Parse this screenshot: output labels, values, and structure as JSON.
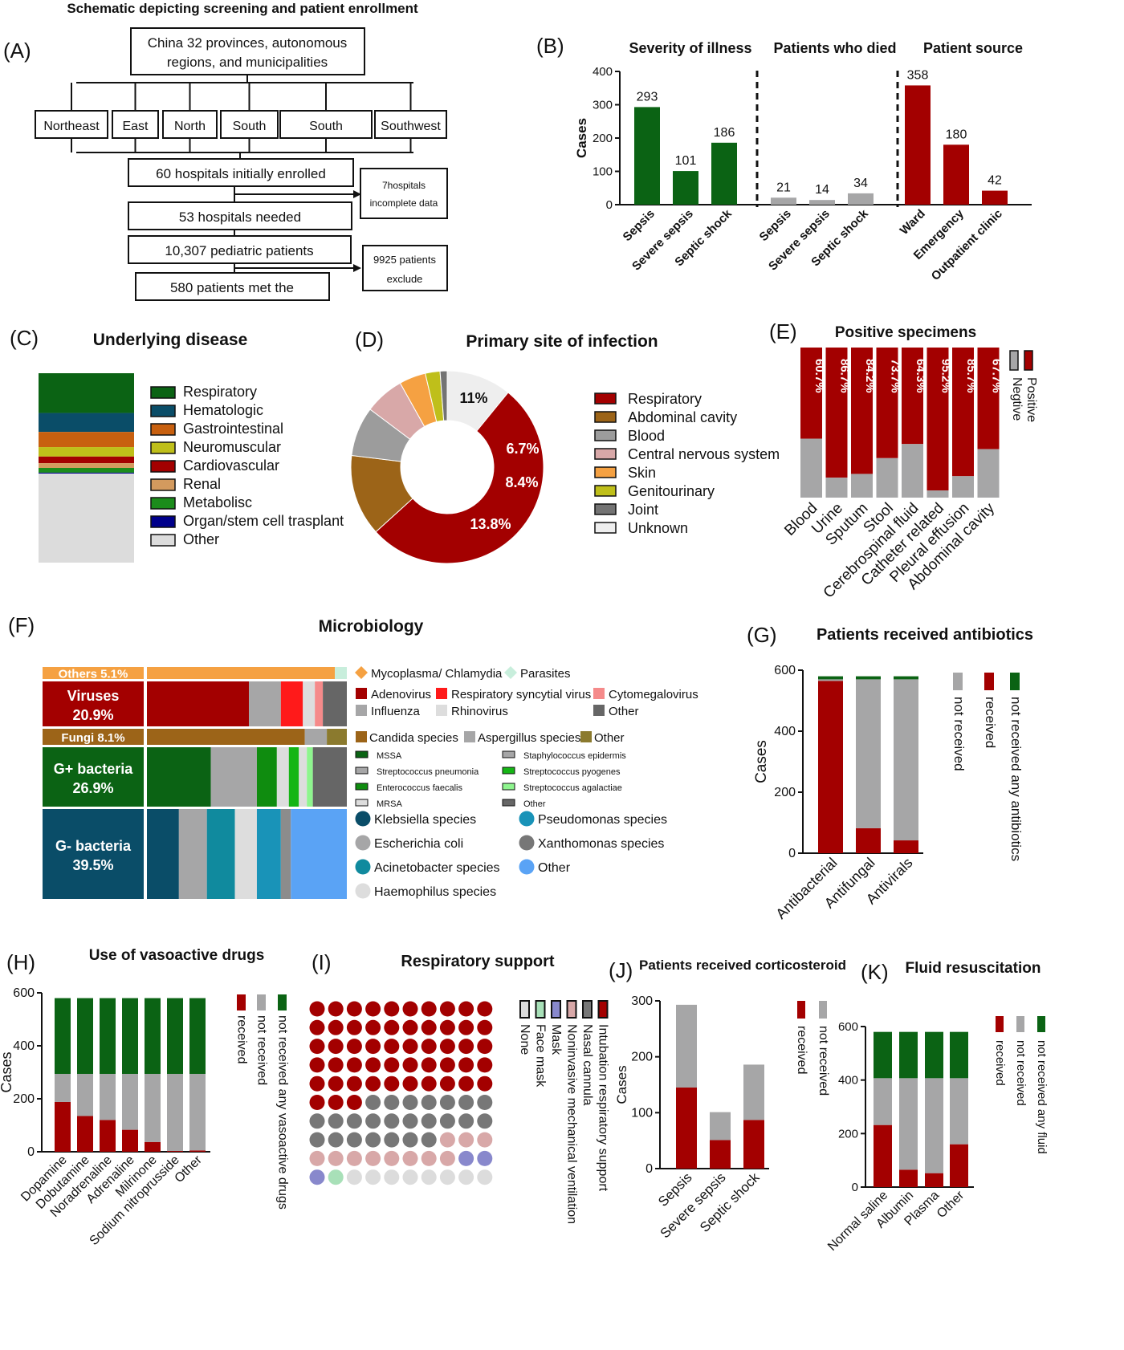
{
  "colors": {
    "green": "#0B6314",
    "red": "#A30000",
    "gray": "#A6A6A7",
    "lightgray": "#E0E0E0",
    "dark": "#666666",
    "teal": "#0A4D68",
    "orange": "#F5A142",
    "brown": "#9C6418",
    "pink": "#D8A8A8",
    "olive": "#BFBF1A",
    "blue": "#5AA3F5",
    "cyan": "#1993B8"
  },
  "panels": {
    "A": {
      "letter": "(A)",
      "title": "Schematic depicting screening and patient enrollment",
      "top": "China 32 provinces, autonomous regions, and municipalities",
      "regions": [
        "Northeast",
        "East",
        "North",
        "South",
        "South",
        "Southwest"
      ],
      "step1": "60 hospitals initially enrolled",
      "excl1": "7hospitals incomplete data",
      "step2": "53 hospitals needed",
      "step3": "10,307 pediatric patients",
      "excl2": "9925 patients exclude",
      "step4": "580 patients met the"
    },
    "B": {
      "letter": "(B)"
    },
    "C": {
      "letter": "(C)"
    },
    "D": {
      "letter": "(D)"
    },
    "E": {
      "letter": "(E)"
    },
    "F": {
      "letter": "(F)"
    },
    "G": {
      "letter": "(G)"
    },
    "H": {
      "letter": "(H)"
    },
    "I": {
      "letter": "(I)"
    },
    "J": {
      "letter": "(J)"
    },
    "K": {
      "letter": "(K)"
    }
  },
  "chart_data": [
    {
      "panel": "B",
      "type": "bar",
      "ylabel": "Cases",
      "ylim": [
        0,
        400
      ],
      "yticks": [
        0,
        100,
        200,
        300,
        400
      ],
      "groups": [
        {
          "title": "Severity of illness",
          "categories": [
            "Sepsis",
            "Severe sepsis",
            "Septic shock"
          ],
          "values": [
            293,
            101,
            186
          ],
          "color": "green"
        },
        {
          "title": "Patients who died",
          "categories": [
            "Sepsis",
            "Severe sepsis",
            "Septic shock"
          ],
          "values": [
            21,
            14,
            34
          ],
          "color": "gray"
        },
        {
          "title": "Patient source",
          "categories": [
            "Ward",
            "Emergency",
            "Outpatient clinic"
          ],
          "values": [
            358,
            180,
            42
          ],
          "color": "red"
        }
      ]
    },
    {
      "panel": "C",
      "type": "bar",
      "title": "Underlying disease",
      "stacked": true,
      "segments": [
        {
          "name": "Respiratory",
          "value": 21,
          "color": "#0B6314"
        },
        {
          "name": "Hematologic",
          "value": 10,
          "color": "#0A4D68"
        },
        {
          "name": "Gastrointestinal",
          "value": 8,
          "color": "#C8600F"
        },
        {
          "name": "Neuromuscular",
          "value": 5,
          "color": "#BFBF1A"
        },
        {
          "name": "Cardiovascular",
          "value": 3.5,
          "color": "#A30000"
        },
        {
          "name": "Renal",
          "value": 2.5,
          "color": "#D39A5E"
        },
        {
          "name": "Metabolisc",
          "value": 2.5,
          "color": "#1B8C1B"
        },
        {
          "name": "Organ/stem cell  trasplant",
          "value": 0.5,
          "color": "#00008B"
        },
        {
          "name": "Other",
          "value": 47,
          "color": "#DCDCDC"
        }
      ]
    },
    {
      "panel": "D",
      "type": "pie",
      "title": "Primary site of infection",
      "slices": [
        {
          "name": "Respiratory",
          "value": 52.9,
          "label": "52.9%",
          "color": "#A30000"
        },
        {
          "name": "Abdominal cavity",
          "value": 13.8,
          "label": "13.8%",
          "color": "#9C6418"
        },
        {
          "name": "Blood",
          "value": 8.4,
          "label": "8.4%",
          "color": "#9C9C9C"
        },
        {
          "name": "Central nervous system",
          "value": 6.7,
          "label": "6.7%",
          "color": "#D8A8A8"
        },
        {
          "name": "Skin",
          "value": 4.5,
          "label": "",
          "color": "#F5A142"
        },
        {
          "name": "Genitourinary",
          "value": 2.5,
          "label": "",
          "color": "#BFBF1A"
        },
        {
          "name": "Joint",
          "value": 1.2,
          "label": "",
          "color": "#737373"
        },
        {
          "name": "Unknown",
          "value": 11,
          "label": "11%",
          "color": "#EEEEEE"
        }
      ]
    },
    {
      "panel": "E",
      "type": "bar",
      "title": "Positive specimens",
      "stacked": true,
      "normalized": true,
      "categories": [
        "Blood",
        "Urine",
        "Sputum",
        "Stool",
        "Cerebrospinal fluid",
        "Catheter related",
        "Pleural effusion",
        "Abdominal cavity"
      ],
      "series": [
        {
          "name": "Positive",
          "values": [
            60.7,
            86.7,
            84.2,
            73.7,
            64.3,
            95.2,
            85.7,
            67.7
          ],
          "labels": [
            "60.7%",
            "86.7%",
            "84.2%",
            "73.7%",
            "64.3%",
            "95.2%",
            "85.7%",
            "67.7%"
          ],
          "color": "red"
        },
        {
          "name": "Negtive",
          "values": [
            39.3,
            13.3,
            15.8,
            26.3,
            35.7,
            4.8,
            14.3,
            32.3
          ],
          "color": "gray"
        }
      ]
    },
    {
      "panel": "F",
      "type": "bar",
      "title": "Microbiology",
      "stacked": true,
      "rows": [
        {
          "label": "Others 5.1%",
          "value": 5.1,
          "color": "#F5A142",
          "parts": [
            {
              "name": "Mycoplasma/ Chlamydia",
              "value": 94,
              "color": "#F5A142"
            },
            {
              "name": "Parasites",
              "value": 6,
              "color": "#C8EEDC"
            }
          ]
        },
        {
          "label": "Viruses",
          "pct": "20.9%",
          "value": 20.9,
          "color": "#A30000",
          "parts": [
            {
              "name": "Adenovirus",
              "value": 51,
              "color": "#A30000"
            },
            {
              "name": "Influenza",
              "value": 16,
              "color": "#A6A6A7"
            },
            {
              "name": "Respiratory syncytial virus",
              "value": 11,
              "color": "#FF1A1A"
            },
            {
              "name": "Rhinovirus",
              "value": 6,
              "color": "#DDDDDD"
            },
            {
              "name": "Cytomegalovirus",
              "value": 4,
              "color": "#F58A8A"
            },
            {
              "name": "Other",
              "value": 12,
              "color": "#666666"
            }
          ]
        },
        {
          "label": "Fungi 8.1%",
          "value": 8.1,
          "color": "#9C6418",
          "parts": [
            {
              "name": "Candida species",
              "value": 79,
              "color": "#9C6418"
            },
            {
              "name": "Aspergillus species",
              "value": 11,
              "color": "#A6A6A7"
            },
            {
              "name": "Other",
              "value": 10,
              "color": "#8B7A2E"
            }
          ]
        },
        {
          "label": "G+ bacteria",
          "pct": "26.9%",
          "value": 26.9,
          "color": "#0B6314",
          "parts": [
            {
              "name": "MSSA",
              "value": 32,
              "color": "#0B6314"
            },
            {
              "name": "Staphylococcus epidermis",
              "value": 23,
              "color": "#A6A6A7"
            },
            {
              "name": "Streptococcus pneumonia",
              "value": 10,
              "color": "#0F8C0F"
            },
            {
              "name": "Enterococcus faecalis",
              "value": 6,
              "color": "#DDDDDD"
            },
            {
              "name": "Streptococcus pyogenes",
              "value": 5,
              "color": "#15B515"
            },
            {
              "name": "MRSA",
              "value": 4,
              "color": "#DDDDDD"
            },
            {
              "name": "Streptococcus agalactiae",
              "value": 3,
              "color": "#8EF58E"
            },
            {
              "name": "Other",
              "value": 17,
              "color": "#666666"
            }
          ]
        },
        {
          "label": "G- bacteria",
          "pct": "39.5%",
          "value": 39.5,
          "color": "#0A4D68",
          "parts": [
            {
              "name": "Klebsiella species",
              "value": 16,
              "color": "#0A4D68"
            },
            {
              "name": "Escherichia coli",
              "value": 14,
              "color": "#A6A6A7"
            },
            {
              "name": "Acinetobacter species",
              "value": 14,
              "color": "#108A9E"
            },
            {
              "name": "Haemophilus species",
              "value": 11,
              "color": "#DDDDDD"
            },
            {
              "name": "Pseudomonas species",
              "value": 12,
              "color": "#1993B8"
            },
            {
              "name": "Xanthomonas species",
              "value": 5,
              "color": "#8C8C8C"
            },
            {
              "name": "Other",
              "value": 28,
              "color": "#5AA3F5"
            }
          ]
        }
      ],
      "legends": [
        {
          "items": [
            {
              "name": "Mycoplasma/ Chlamydia",
              "color": "#F5A142",
              "shape": "diamond"
            },
            {
              "name": "Parasites",
              "color": "#C8EEDC",
              "shape": "diamond"
            }
          ]
        },
        {
          "items": [
            {
              "name": "Adenovirus",
              "color": "#A30000"
            },
            {
              "name": "Respiratory syncytial virus",
              "color": "#FF1A1A"
            },
            {
              "name": "Cytomegalovirus",
              "color": "#F58A8A"
            },
            {
              "name": "Influenza",
              "color": "#A6A6A7"
            },
            {
              "name": "Rhinovirus",
              "color": "#DDDDDD"
            },
            {
              "name": "Other",
              "color": "#666666"
            }
          ]
        },
        {
          "items": [
            {
              "name": "Candida species",
              "color": "#9C6418"
            },
            {
              "name": "Aspergillus species",
              "color": "#A6A6A7"
            },
            {
              "name": "Other",
              "color": "#8B7A2E"
            }
          ]
        },
        {
          "items": [
            {
              "name": "MSSA",
              "color": "#0B6314"
            },
            {
              "name": "Staphylococcus epidermis",
              "color": "#A6A6A7"
            },
            {
              "name": "Streptococcus pneumonia",
              "color": "#A6A6A7"
            },
            {
              "name": "Streptococcus pyogenes",
              "color": "#15B515"
            },
            {
              "name": "Enterococcus faecalis",
              "color": "#0F8C0F"
            },
            {
              "name": "Streptococcus agalactiae",
              "color": "#8EF58E"
            },
            {
              "name": "MRSA",
              "color": "#DDDDDD"
            },
            {
              "name": "Other",
              "color": "#666666"
            }
          ]
        },
        {
          "items": [
            {
              "name": "Klebsiella species",
              "color": "#0A4D68"
            },
            {
              "name": "Pseudomonas species",
              "color": "#1993B8"
            },
            {
              "name": "Escherichia coli",
              "color": "#A6A6A7"
            },
            {
              "name": "Xanthomonas species",
              "color": "#777777"
            },
            {
              "name": "Acinetobacter species",
              "color": "#108A9E"
            },
            {
              "name": "Other",
              "color": "#5AA3F5"
            },
            {
              "name": "Haemophilus species",
              "color": "#DDDDDD"
            }
          ]
        }
      ]
    },
    {
      "panel": "G",
      "type": "bar",
      "title": "Patients received antibiotics",
      "stacked": true,
      "ylabel": "Cases",
      "ylim": [
        0,
        600
      ],
      "yticks": [
        0,
        200,
        400,
        600
      ],
      "categories": [
        "Antibacterial",
        "Antifungal",
        "Antivirals"
      ],
      "series": [
        {
          "name": "received",
          "values": [
            565,
            82,
            42
          ],
          "color": "red"
        },
        {
          "name": "not received",
          "values": [
            5,
            488,
            528
          ],
          "color": "gray"
        },
        {
          "name": "not received any antibiotics",
          "values": [
            10,
            10,
            10
          ],
          "color": "green"
        }
      ]
    },
    {
      "panel": "H",
      "type": "bar",
      "title": "Use of vasoactive drugs",
      "stacked": true,
      "ylabel": "Cases",
      "ylim": [
        0,
        600
      ],
      "yticks": [
        0,
        200,
        400,
        600
      ],
      "categories": [
        "Dopamine",
        "Dobutamine",
        "Noradrenaline",
        "Adrenaline",
        "Milrinone",
        "Sodium nitroprusside",
        "Other"
      ],
      "series": [
        {
          "name": "received",
          "values": [
            188,
            135,
            120,
            83,
            37,
            3,
            5
          ],
          "color": "red"
        },
        {
          "name": "not received",
          "values": [
            106,
            159,
            174,
            211,
            257,
            291,
            289
          ],
          "color": "gray"
        },
        {
          "name": "not received any vasoactive drugs",
          "values": [
            286,
            286,
            286,
            286,
            286,
            286,
            286
          ],
          "color": "green"
        }
      ]
    },
    {
      "panel": "I",
      "type": "table",
      "title": "Respiratory support",
      "grid": [
        10,
        10
      ],
      "categories": [
        {
          "name": "Intubation respiratory support",
          "count": 53,
          "color": "#A30000"
        },
        {
          "name": "Nasal cannula",
          "count": 24,
          "color": "#777777"
        },
        {
          "name": "Noninvasive mechanical ventilation",
          "count": 11,
          "color": "#D8A8A8"
        },
        {
          "name": "Mask",
          "count": 3,
          "color": "#8888CC"
        },
        {
          "name": "Face mask",
          "count": 1,
          "color": "#A8E0B8"
        },
        {
          "name": "None",
          "count": 8,
          "color": "#DCDCDC"
        }
      ]
    },
    {
      "panel": "J",
      "type": "bar",
      "title": "Patients received corticosteroid",
      "stacked": true,
      "ylabel": "Cases",
      "ylim": [
        0,
        300
      ],
      "yticks": [
        0,
        100,
        200,
        300
      ],
      "categories": [
        "Sepsis",
        "Severe sepsis",
        "Septic shock"
      ],
      "series": [
        {
          "name": "received",
          "values": [
            145,
            51,
            87
          ],
          "color": "red"
        },
        {
          "name": "not received",
          "values": [
            148,
            50,
            99
          ],
          "color": "gray"
        }
      ]
    },
    {
      "panel": "K",
      "type": "bar",
      "title": "Fluid resuscitation",
      "stacked": true,
      "ylabel": "",
      "ylim": [
        0,
        600
      ],
      "yticks": [
        0,
        200,
        400,
        600
      ],
      "categories": [
        "Normal saline",
        "Albumin",
        "Plasma",
        "Other"
      ],
      "series": [
        {
          "name": "received",
          "values": [
            232,
            65,
            52,
            160
          ],
          "color": "red"
        },
        {
          "name": "not received",
          "values": [
            175,
            342,
            355,
            247
          ],
          "color": "gray"
        },
        {
          "name": "not received any fluid",
          "values": [
            173,
            173,
            173,
            173
          ],
          "color": "green"
        }
      ]
    }
  ]
}
